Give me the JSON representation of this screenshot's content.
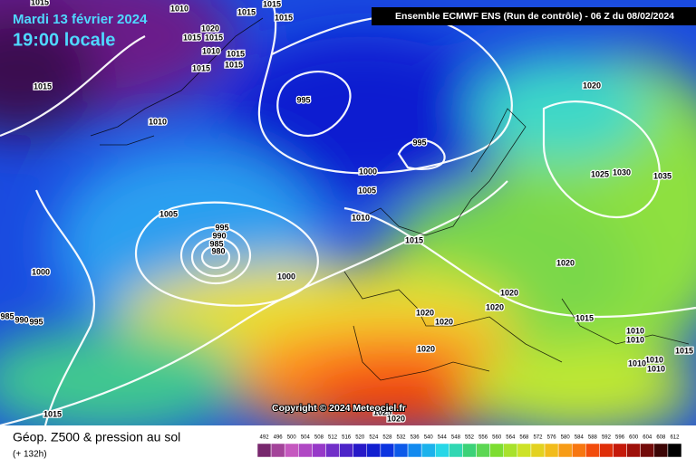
{
  "header": {
    "date": "Mardi 13 février 2024",
    "time": "19:00 locale",
    "model": "Ensemble ECMWF ENS  (Run de contrôle)  -  06 Z du 08/02/2024"
  },
  "copyright": "Copyright © 2024 Meteociel.fr",
  "footer": {
    "title": "Géop. Z500 & pression au sol",
    "lead": "(+ 132h)"
  },
  "legend": {
    "labels": [
      "492",
      "496",
      "500",
      "504",
      "508",
      "512",
      "516",
      "520",
      "524",
      "528",
      "532",
      "536",
      "540",
      "544",
      "548",
      "552",
      "556",
      "560",
      "564",
      "568",
      "572",
      "576",
      "580",
      "584",
      "588",
      "592",
      "596",
      "600",
      "604",
      "608",
      "612"
    ]
  },
  "isobar_labels": [
    "1015",
    "1010",
    "1015",
    "1015",
    "1015",
    "1020",
    "1015",
    "1015",
    "1010",
    "1015",
    "1015",
    "1015",
    "1015",
    "1010",
    "995",
    "995",
    "1000",
    "1005",
    "1005",
    "1010",
    "995",
    "990",
    "985",
    "980",
    "1015",
    "1000",
    "1000",
    "1020",
    "1020",
    "1020",
    "1020",
    "1020",
    "1015",
    "1010",
    "1010",
    "1015",
    "1010",
    "1010",
    "1010",
    "1020",
    "1025",
    "1030",
    "1035",
    "1020",
    "1015",
    "1025",
    "1020",
    "985",
    "990",
    "995"
  ]
}
